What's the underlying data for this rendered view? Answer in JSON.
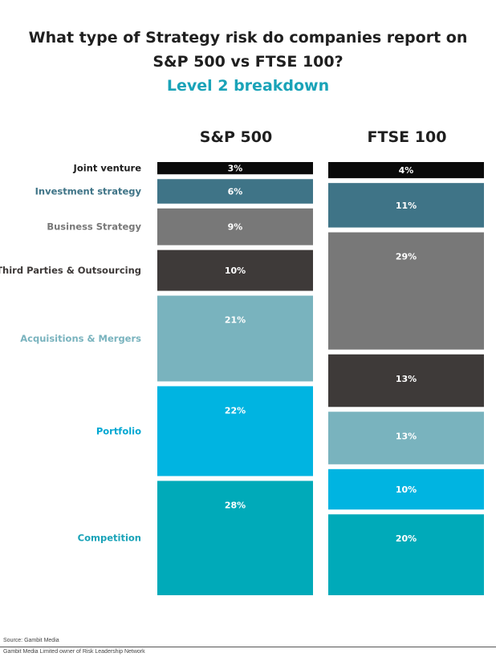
{
  "title_line1": "What type of Strategy risk do companies report on",
  "title_line2": "S&P 500 vs FTSE 100?",
  "subtitle": "Level 2 breakdown",
  "chart_data": {
    "type": "bar",
    "stacked": true,
    "categories": [
      "S&P 500",
      "FTSE 100"
    ],
    "series": [
      {
        "name": "Joint venture",
        "values": [
          3,
          4
        ],
        "color": "#0a0a0a",
        "label_color": "#1f1f1f"
      },
      {
        "name": "Investment strategy",
        "values": [
          6,
          11
        ],
        "color": "#3f7487",
        "label_color": "#3f7487"
      },
      {
        "name": "Business Strategy",
        "values": [
          9,
          29
        ],
        "color": "#787878",
        "label_color": "#787878"
      },
      {
        "name": "Third Parties & Outsourcing",
        "values": [
          10,
          13
        ],
        "color": "#3e3a39",
        "label_color": "#3e3a39"
      },
      {
        "name": "Acquisitions & Mergers",
        "values": [
          21,
          13
        ],
        "color": "#79b3be",
        "label_color": "#79b3be"
      },
      {
        "name": "Portfolio",
        "values": [
          22,
          10
        ],
        "color": "#00b4e1",
        "label_color": "#00a7d2"
      },
      {
        "name": "Competition",
        "values": [
          28,
          20
        ],
        "color": "#00aab9",
        "label_color": "#1aa3b8"
      }
    ],
    "data_labels": [
      [
        "3%",
        "4%"
      ],
      [
        "6%",
        "11%"
      ],
      [
        "9%",
        "29%"
      ],
      [
        "10%",
        "13%"
      ],
      [
        "21%",
        "13%"
      ],
      [
        "22%",
        "10%"
      ],
      [
        "28%",
        "20%"
      ]
    ],
    "xlabel": "",
    "ylabel": "",
    "legend": "left"
  },
  "footer": {
    "source": "Source: Gambit Media",
    "owner": "Gambit Media Limited owner of Risk Leadership Network"
  }
}
